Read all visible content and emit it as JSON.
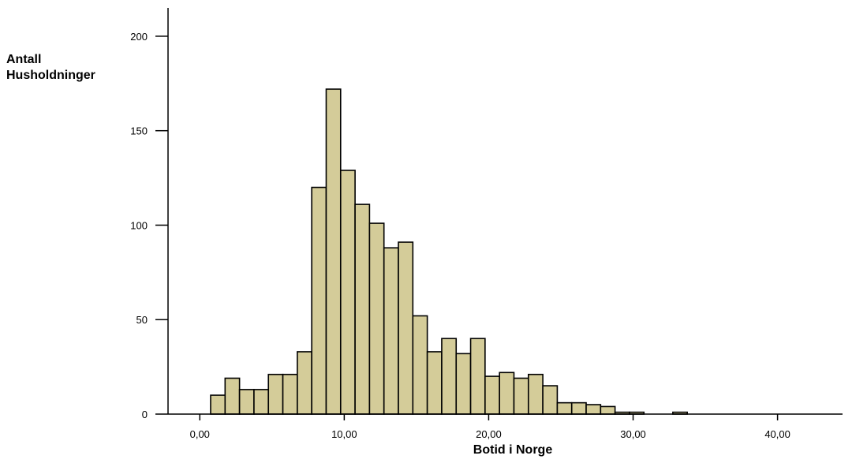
{
  "chart_data": {
    "type": "bar",
    "xlabel": "Botid i Norge",
    "ylabel_line1": "Antall",
    "ylabel_line2": "Husholdninger",
    "ylim": [
      0,
      215
    ],
    "xlim": [
      -2.2,
      44.5
    ],
    "yticks": [
      0,
      50,
      100,
      150,
      200
    ],
    "yticklabels": [
      "0",
      "50",
      "100",
      "150",
      "200"
    ],
    "xticks": [
      0,
      10,
      20,
      30,
      40
    ],
    "xticklabels": [
      "0,00",
      "10,00",
      "20,00",
      "30,00",
      "40,00"
    ],
    "bin_width": 1.0,
    "bins_start": [
      0.75,
      1.75,
      2.75,
      3.75,
      4.75,
      5.75,
      6.75,
      7.75,
      8.75,
      9.75,
      10.75,
      11.75,
      12.75,
      13.75,
      14.75,
      15.75,
      16.75,
      17.75,
      18.75,
      19.75,
      20.75,
      21.75,
      22.75,
      23.75,
      24.75,
      25.75,
      26.75,
      27.75,
      28.75,
      29.75,
      30.75,
      31.75,
      32.75
    ],
    "values": [
      10,
      19,
      13,
      13,
      21,
      21,
      33,
      120,
      172,
      129,
      111,
      101,
      88,
      91,
      52,
      33,
      40,
      32,
      40,
      20,
      22,
      19,
      21,
      15,
      6,
      6,
      5,
      4,
      1,
      1,
      0,
      0,
      1
    ],
    "bar_color": "#d4cc99",
    "edge_color": "#000000",
    "grid": false
  }
}
